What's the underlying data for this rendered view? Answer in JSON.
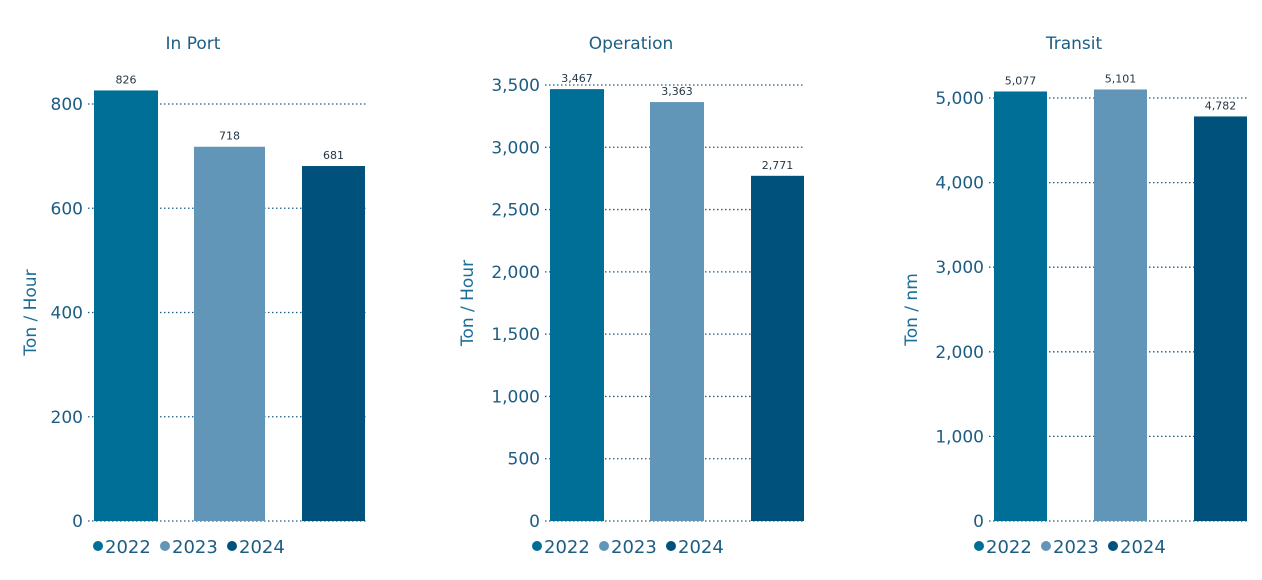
{
  "colors": {
    "2022": "#006f98",
    "2023": "#6296b8",
    "2024": "#00527d"
  },
  "legend": [
    {
      "label": "2022",
      "color": "#006f98"
    },
    {
      "label": "2023",
      "color": "#6296b8"
    },
    {
      "label": "2024",
      "color": "#00527d"
    }
  ],
  "chart_data": [
    {
      "type": "bar",
      "title": "In Port",
      "ylabel": "Ton / Hour",
      "xlabel": "",
      "categories": [
        "2022",
        "2023",
        "2024"
      ],
      "values": [
        826,
        718,
        681
      ],
      "value_labels": [
        "826",
        "718",
        "681"
      ],
      "ylim": [
        0,
        800
      ],
      "yticks": [
        0,
        200,
        400,
        600,
        800
      ],
      "ytick_labels": [
        "0",
        "200",
        "400",
        "600",
        "800"
      ],
      "grid": true,
      "legend_position": "bottom-left"
    },
    {
      "type": "bar",
      "title": "Operation",
      "ylabel": "Ton / Hour",
      "xlabel": "",
      "categories": [
        "2022",
        "2023",
        "2024"
      ],
      "values": [
        3467,
        3363,
        2771
      ],
      "value_labels": [
        "3,467",
        "3,363",
        "2,771"
      ],
      "ylim": [
        0,
        3500
      ],
      "yticks": [
        0,
        500,
        1000,
        1500,
        2000,
        2500,
        3000,
        3500
      ],
      "ytick_labels": [
        "0",
        "500",
        "1,000",
        "1,500",
        "2,000",
        "2,500",
        "3,000",
        "3,500"
      ],
      "grid": true,
      "legend_position": "bottom-left"
    },
    {
      "type": "bar",
      "title": "Transit",
      "ylabel": "Ton / nm",
      "xlabel": "",
      "categories": [
        "2022",
        "2023",
        "2024"
      ],
      "values": [
        5077,
        5101,
        4782
      ],
      "value_labels": [
        "5,077",
        "5,101",
        "4,782"
      ],
      "ylim": [
        0,
        5000
      ],
      "yticks": [
        0,
        1000,
        2000,
        3000,
        4000,
        5000
      ],
      "ytick_labels": [
        "0",
        "1,000",
        "2,000",
        "3,000",
        "4,000",
        "5,000"
      ],
      "grid": true,
      "legend_position": "bottom-left"
    }
  ]
}
